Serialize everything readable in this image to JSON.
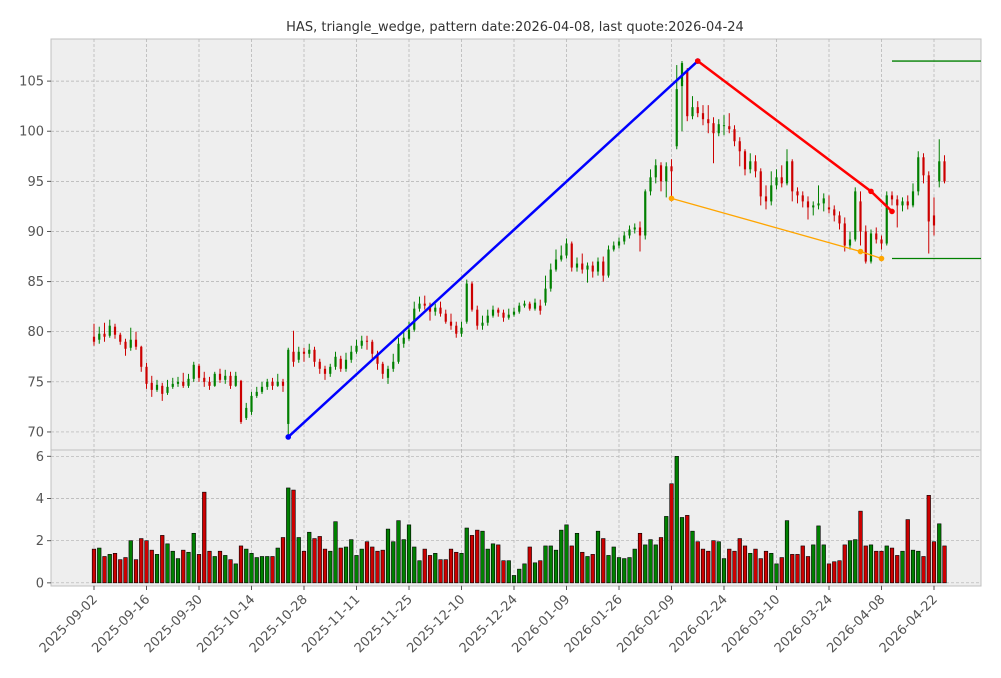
{
  "chart_data": {
    "type": "candlestick",
    "title": "HAS, triangle_wedge, pattern date:2026-04-08, last quote:2026-04-24",
    "colors": {
      "up": "#008000",
      "down": "#cc0000",
      "upper_line": "#ff0000",
      "lower_line": "#ffa500",
      "trend_line": "#0000ff",
      "levels": "#008000",
      "panel_bg": "#eeeeee",
      "grid": "#b0b0b0"
    },
    "price_axis": {
      "ticks": [
        70,
        75,
        80,
        85,
        90,
        95,
        100,
        105
      ],
      "range": [
        68.2,
        109.2
      ]
    },
    "volume_axis": {
      "ticks": [
        0,
        2,
        4,
        6
      ],
      "range": [
        -0.15,
        6.3
      ]
    },
    "grid": true,
    "x_tick_labels": [
      "2025-09-02",
      "2025-09-16",
      "2025-09-30",
      "2025-10-14",
      "2025-10-28",
      "2025-11-11",
      "2025-11-25",
      "2025-12-10",
      "2025-12-24",
      "2026-01-09",
      "2026-01-26",
      "2026-02-09",
      "2026-02-24",
      "2026-03-10",
      "2026-03-24",
      "2026-04-08",
      "2026-04-22"
    ],
    "x_tick_indices": [
      0,
      10,
      20,
      30,
      40,
      50,
      60,
      70,
      80,
      90,
      100,
      110,
      120,
      130,
      140,
      150,
      160
    ],
    "bars": [
      [
        79.5,
        79.0,
        80.8,
        78.6,
        1.6
      ],
      [
        79.2,
        79.8,
        80.5,
        78.8,
        1.65
      ],
      [
        79.8,
        79.5,
        80.9,
        79.0,
        1.25
      ],
      [
        79.6,
        80.6,
        81.2,
        79.4,
        1.35
      ],
      [
        80.5,
        79.7,
        80.8,
        79.3,
        1.4
      ],
      [
        79.7,
        79.0,
        79.9,
        78.7,
        1.1
      ],
      [
        79.0,
        78.3,
        79.3,
        77.6,
        1.2
      ],
      [
        78.4,
        79.2,
        80.4,
        78.1,
        2.0
      ],
      [
        79.2,
        78.5,
        80.0,
        78.2,
        1.1
      ],
      [
        78.5,
        76.5,
        78.6,
        76.0,
        2.1
      ],
      [
        76.5,
        74.8,
        76.9,
        74.3,
        2.0
      ],
      [
        74.9,
        74.2,
        75.6,
        73.5,
        1.55
      ],
      [
        74.2,
        74.7,
        75.2,
        74.0,
        1.35
      ],
      [
        74.6,
        73.8,
        74.9,
        73.1,
        2.25
      ],
      [
        73.9,
        74.5,
        75.2,
        73.7,
        1.85
      ],
      [
        74.5,
        74.8,
        75.4,
        74.3,
        1.5
      ],
      [
        74.8,
        75.0,
        75.5,
        74.5,
        1.15
      ],
      [
        75.0,
        74.6,
        75.9,
        74.4,
        1.55
      ],
      [
        74.6,
        75.3,
        75.8,
        74.4,
        1.45
      ],
      [
        75.3,
        76.7,
        77.0,
        75.0,
        2.35
      ],
      [
        76.6,
        75.4,
        76.8,
        75.0,
        1.35
      ],
      [
        75.4,
        75.0,
        76.0,
        74.5,
        4.3
      ],
      [
        75.0,
        74.6,
        75.5,
        74.2,
        1.5
      ],
      [
        74.6,
        75.8,
        76.0,
        74.5,
        1.25
      ],
      [
        75.8,
        75.2,
        76.3,
        74.9,
        1.5
      ],
      [
        75.2,
        75.6,
        76.2,
        74.8,
        1.3
      ],
      [
        75.6,
        74.6,
        76.0,
        74.3,
        1.1
      ],
      [
        74.6,
        75.6,
        76.0,
        74.5,
        0.9
      ],
      [
        75.1,
        71.0,
        75.2,
        70.8,
        1.75
      ],
      [
        71.4,
        72.4,
        72.9,
        71.2,
        1.6
      ],
      [
        72.0,
        73.6,
        74.0,
        71.7,
        1.4
      ],
      [
        73.6,
        74.0,
        74.5,
        73.4,
        1.2
      ],
      [
        74.0,
        74.5,
        75.0,
        73.8,
        1.25
      ],
      [
        74.5,
        75.0,
        75.3,
        74.2,
        1.25
      ],
      [
        75.0,
        74.6,
        75.4,
        74.2,
        1.25
      ],
      [
        74.6,
        75.0,
        75.8,
        74.5,
        1.65
      ],
      [
        75.0,
        74.6,
        75.3,
        74.0,
        2.15
      ],
      [
        70.8,
        78.2,
        78.4,
        69.5,
        4.5
      ],
      [
        78.0,
        77.0,
        80.1,
        76.5,
        4.4
      ],
      [
        77.2,
        78.0,
        78.5,
        76.9,
        2.15
      ],
      [
        78.0,
        77.8,
        78.4,
        77.0,
        1.5
      ],
      [
        77.8,
        78.2,
        78.8,
        77.4,
        2.4
      ],
      [
        78.2,
        77.0,
        78.5,
        76.5,
        2.1
      ],
      [
        77.0,
        76.3,
        77.3,
        75.8,
        2.2
      ],
      [
        76.3,
        75.8,
        76.6,
        75.2,
        1.6
      ],
      [
        75.8,
        76.5,
        76.8,
        75.5,
        1.5
      ],
      [
        76.5,
        77.5,
        78.0,
        76.2,
        2.9
      ],
      [
        77.3,
        76.3,
        77.6,
        76.0,
        1.65
      ],
      [
        76.3,
        77.2,
        77.9,
        76.0,
        1.7
      ],
      [
        77.2,
        78.0,
        78.6,
        76.9,
        2.05
      ],
      [
        78.0,
        78.6,
        79.2,
        77.8,
        1.3
      ],
      [
        78.6,
        79.1,
        79.6,
        78.3,
        1.6
      ],
      [
        79.1,
        79.0,
        79.6,
        78.2,
        1.95
      ],
      [
        79.0,
        77.8,
        79.2,
        77.3,
        1.7
      ],
      [
        77.8,
        76.8,
        78.1,
        76.2,
        1.5
      ],
      [
        76.8,
        75.8,
        77.0,
        75.3,
        1.55
      ],
      [
        75.4,
        76.3,
        76.6,
        74.8,
        2.55
      ],
      [
        76.3,
        77.0,
        77.8,
        76.0,
        1.95
      ],
      [
        77.0,
        78.8,
        79.4,
        76.8,
        2.95
      ],
      [
        78.8,
        79.4,
        80.2,
        78.4,
        2.05
      ],
      [
        79.3,
        80.2,
        81.0,
        79.1,
        2.75
      ],
      [
        80.2,
        82.3,
        83.0,
        80.0,
        1.7
      ],
      [
        82.3,
        82.8,
        83.5,
        82.0,
        1.05
      ],
      [
        82.8,
        82.6,
        83.6,
        82.2,
        1.6
      ],
      [
        82.6,
        82.0,
        82.9,
        81.1,
        1.3
      ],
      [
        82.0,
        82.4,
        82.8,
        81.6,
        1.4
      ],
      [
        82.4,
        81.8,
        83.0,
        81.5,
        1.1
      ],
      [
        81.8,
        81.0,
        82.2,
        80.8,
        1.1
      ],
      [
        81.0,
        80.6,
        81.8,
        80.2,
        1.6
      ],
      [
        80.6,
        79.8,
        81.0,
        79.4,
        1.45
      ],
      [
        79.8,
        80.4,
        81.0,
        79.5,
        1.4
      ],
      [
        81.0,
        84.8,
        85.2,
        80.8,
        2.6
      ],
      [
        84.8,
        82.2,
        85.0,
        82.0,
        2.25
      ],
      [
        82.2,
        80.6,
        82.6,
        80.2,
        2.5
      ],
      [
        80.6,
        80.9,
        81.6,
        80.2,
        2.45
      ],
      [
        80.9,
        81.6,
        82.2,
        80.6,
        1.6
      ],
      [
        81.6,
        82.2,
        82.6,
        81.4,
        1.85
      ],
      [
        82.2,
        81.9,
        82.4,
        81.5,
        1.8
      ],
      [
        81.9,
        81.4,
        82.2,
        81.0,
        1.05
      ],
      [
        81.4,
        81.7,
        82.3,
        81.2,
        1.05
      ],
      [
        81.7,
        82.0,
        82.4,
        81.5,
        0.35
      ],
      [
        82.0,
        82.6,
        82.9,
        81.8,
        0.65
      ],
      [
        82.6,
        82.8,
        83.1,
        82.4,
        0.9
      ],
      [
        82.8,
        82.3,
        83.0,
        82.1,
        1.7
      ],
      [
        82.3,
        82.9,
        83.3,
        82.1,
        0.95
      ],
      [
        82.6,
        82.1,
        83.2,
        81.7,
        1.05
      ],
      [
        82.9,
        84.3,
        85.6,
        82.6,
        1.75
      ],
      [
        84.3,
        86.2,
        86.8,
        84.0,
        1.75
      ],
      [
        86.2,
        87.2,
        88.2,
        86.0,
        1.55
      ],
      [
        87.2,
        87.6,
        88.6,
        87.0,
        2.5
      ],
      [
        87.6,
        88.8,
        89.3,
        87.3,
        2.75
      ],
      [
        88.8,
        86.4,
        89.0,
        86.0,
        1.75
      ],
      [
        86.4,
        86.8,
        87.4,
        86.0,
        2.35
      ],
      [
        86.8,
        86.2,
        87.8,
        85.8,
        1.45
      ],
      [
        86.2,
        86.6,
        86.9,
        84.9,
        1.25
      ],
      [
        86.6,
        86.0,
        87.0,
        85.4,
        1.35
      ],
      [
        86.0,
        87.0,
        87.4,
        85.6,
        2.45
      ],
      [
        87.0,
        85.6,
        87.5,
        85.0,
        2.1
      ],
      [
        85.6,
        88.2,
        88.6,
        85.4,
        1.3
      ],
      [
        88.2,
        88.6,
        89.0,
        88.0,
        1.7
      ],
      [
        88.6,
        89.0,
        89.4,
        88.3,
        1.2
      ],
      [
        89.0,
        89.6,
        90.0,
        88.7,
        1.15
      ],
      [
        89.6,
        90.2,
        90.6,
        89.3,
        1.2
      ],
      [
        90.2,
        90.4,
        90.8,
        89.8,
        1.6
      ],
      [
        90.4,
        89.6,
        91.0,
        88.0,
        2.35
      ],
      [
        89.6,
        94.0,
        94.2,
        89.2,
        1.8
      ],
      [
        94.0,
        95.4,
        96.2,
        93.6,
        2.05
      ],
      [
        95.4,
        96.6,
        97.2,
        94.8,
        1.8
      ],
      [
        96.6,
        95.0,
        96.9,
        94.0,
        2.15
      ],
      [
        95.0,
        96.5,
        96.9,
        93.4,
        3.15
      ],
      [
        96.5,
        96.0,
        97.2,
        93.0,
        4.7
      ],
      [
        98.5,
        104.2,
        106.6,
        98.2,
        6.0
      ],
      [
        104.5,
        106.8,
        107.0,
        100.0,
        3.1
      ],
      [
        106.0,
        101.5,
        106.3,
        101.0,
        3.2
      ],
      [
        101.5,
        102.4,
        103.5,
        101.2,
        2.45
      ],
      [
        102.4,
        101.8,
        103.0,
        101.4,
        1.95
      ],
      [
        101.8,
        101.2,
        102.6,
        100.6,
        1.6
      ],
      [
        101.2,
        100.8,
        102.6,
        99.8,
        1.5
      ],
      [
        100.8,
        99.8,
        101.4,
        96.8,
        2.0
      ],
      [
        99.8,
        100.7,
        101.2,
        99.5,
        1.95
      ],
      [
        100.6,
        100.6,
        101.6,
        99.6,
        1.15
      ],
      [
        100.5,
        100.2,
        101.8,
        99.8,
        1.6
      ],
      [
        100.2,
        99.0,
        100.6,
        98.5,
        1.5
      ],
      [
        99.0,
        98.0,
        99.4,
        96.5,
        2.1
      ],
      [
        98.0,
        96.2,
        98.2,
        95.6,
        1.75
      ],
      [
        96.2,
        97.0,
        97.8,
        95.8,
        1.4
      ],
      [
        97.0,
        96.0,
        97.6,
        95.4,
        1.6
      ],
      [
        96.0,
        93.5,
        96.3,
        92.6,
        1.15
      ],
      [
        93.5,
        93.0,
        94.6,
        92.2,
        1.5
      ],
      [
        93.0,
        94.6,
        96.0,
        92.6,
        1.4
      ],
      [
        94.6,
        95.4,
        96.2,
        94.2,
        0.9
      ],
      [
        95.4,
        94.8,
        96.6,
        94.4,
        1.2
      ],
      [
        94.8,
        97.0,
        98.2,
        94.6,
        2.95
      ],
      [
        97.0,
        94.0,
        97.2,
        93.0,
        1.35
      ],
      [
        94.0,
        93.6,
        94.4,
        92.8,
        1.35
      ],
      [
        93.6,
        93.0,
        94.0,
        92.4,
        1.75
      ],
      [
        93.0,
        92.4,
        93.5,
        91.2,
        1.25
      ],
      [
        92.4,
        92.6,
        93.0,
        91.6,
        1.8
      ],
      [
        92.6,
        92.8,
        94.6,
        92.2,
        2.7
      ],
      [
        92.8,
        93.3,
        93.8,
        92.0,
        1.8
      ],
      [
        92.4,
        92.2,
        93.6,
        91.8,
        0.9
      ],
      [
        92.2,
        91.6,
        92.6,
        91.0,
        1.0
      ],
      [
        91.6,
        90.8,
        92.0,
        90.2,
        1.05
      ],
      [
        90.8,
        88.6,
        91.4,
        88.0,
        1.8
      ],
      [
        88.6,
        89.2,
        90.0,
        88.2,
        2.0
      ],
      [
        89.2,
        94.0,
        94.4,
        89.0,
        2.05
      ],
      [
        93.0,
        90.0,
        94.0,
        88.6,
        3.4
      ],
      [
        90.0,
        87.0,
        90.6,
        86.8,
        1.75
      ],
      [
        87.0,
        89.8,
        90.2,
        86.8,
        1.8
      ],
      [
        89.8,
        89.2,
        90.4,
        88.8,
        1.5
      ],
      [
        89.2,
        88.8,
        89.6,
        88.2,
        1.5
      ],
      [
        88.8,
        93.6,
        94.0,
        88.6,
        1.75
      ],
      [
        93.6,
        93.2,
        94.0,
        92.6,
        1.65
      ],
      [
        93.2,
        92.6,
        93.6,
        90.4,
        1.3
      ],
      [
        92.6,
        93.0,
        93.4,
        92.0,
        1.5
      ],
      [
        93.0,
        92.6,
        93.6,
        92.2,
        3.0
      ],
      [
        92.6,
        94.0,
        94.8,
        92.4,
        1.55
      ],
      [
        94.0,
        97.4,
        98.0,
        93.6,
        1.5
      ],
      [
        97.4,
        95.6,
        97.8,
        94.8,
        1.25
      ],
      [
        95.6,
        91.0,
        96.0,
        87.8,
        4.15
      ],
      [
        91.6,
        90.6,
        93.4,
        89.6,
        1.95
      ],
      [
        95.0,
        97.0,
        99.2,
        94.4,
        2.8
      ],
      [
        97.0,
        95.0,
        97.6,
        94.8,
        1.75
      ]
    ],
    "overlays": {
      "trend_line": {
        "points": [
          [
            37,
            69.5
          ],
          [
            115,
            107.0
          ]
        ]
      },
      "upper_line": {
        "points": [
          [
            115,
            107.0
          ],
          [
            148,
            94.0
          ],
          [
            152,
            92.0
          ]
        ]
      },
      "lower_line": {
        "points": [
          [
            110,
            93.3
          ],
          [
            146,
            88.0
          ],
          [
            150,
            87.3
          ]
        ]
      },
      "levels": [
        {
          "value": 107.0,
          "from_index": 152
        },
        {
          "value": 87.3,
          "from_index": 152
        }
      ]
    }
  }
}
